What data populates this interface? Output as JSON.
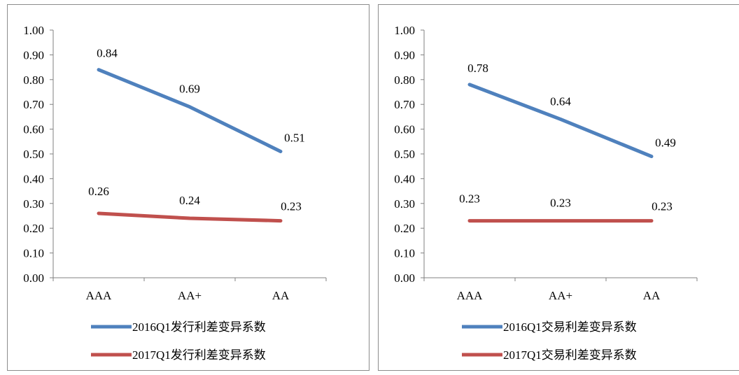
{
  "colors": {
    "series1": "#4f81bd",
    "series2": "#c0504d",
    "axis": "#808080",
    "border": "#8c8c8c"
  },
  "chart_data": [
    {
      "type": "line",
      "categories": [
        "AAA",
        "AA+",
        "AA"
      ],
      "ylim": [
        0,
        1.0
      ],
      "yticks": [
        "0.00",
        "0.10",
        "0.20",
        "0.30",
        "0.40",
        "0.50",
        "0.60",
        "0.70",
        "0.80",
        "0.90",
        "1.00"
      ],
      "grid": false,
      "legend": "bottom",
      "series": [
        {
          "name": "2016Q1发行利差变异系数",
          "values": [
            0.84,
            0.69,
            0.51
          ],
          "labels": [
            "0.84",
            "0.69",
            "0.51"
          ]
        },
        {
          "name": "2017Q1发行利差变异系数",
          "values": [
            0.26,
            0.24,
            0.23
          ],
          "labels": [
            "0.26",
            "0.24",
            "0.23"
          ]
        }
      ]
    },
    {
      "type": "line",
      "categories": [
        "AAA",
        "AA+",
        "AA"
      ],
      "ylim": [
        0,
        1.0
      ],
      "yticks": [
        "0.00",
        "0.10",
        "0.20",
        "0.30",
        "0.40",
        "0.50",
        "0.60",
        "0.70",
        "0.80",
        "0.90",
        "1.00"
      ],
      "grid": false,
      "legend": "bottom",
      "series": [
        {
          "name": "2016Q1交易利差变异系数",
          "values": [
            0.78,
            0.64,
            0.49
          ],
          "labels": [
            "0.78",
            "0.64",
            "0.49"
          ]
        },
        {
          "name": "2017Q1交易利差变异系数",
          "values": [
            0.23,
            0.23,
            0.23
          ],
          "labels": [
            "0.23",
            "0.23",
            "0.23"
          ]
        }
      ]
    }
  ]
}
